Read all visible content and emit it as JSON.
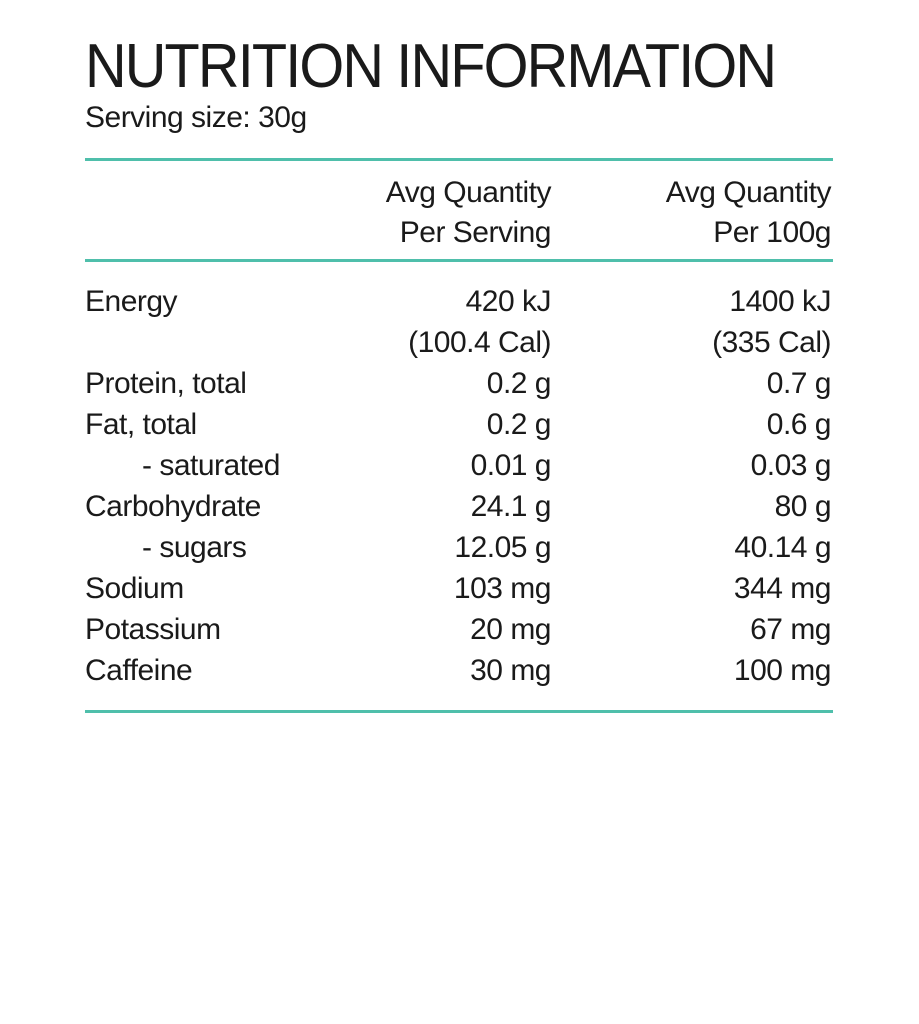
{
  "title": "NUTRITION INFORMATION",
  "serving_size": "Serving size: 30g",
  "accent_color": "#4fbfab",
  "columns": {
    "per_serving": [
      "Avg Quantity",
      "Per Serving"
    ],
    "per_100g": [
      "Avg Quantity",
      "Per 100g"
    ]
  },
  "rows": [
    {
      "label": "Energy",
      "per_serving": "420 kJ",
      "per_100g": "1400 kJ",
      "indent": false
    },
    {
      "label": "",
      "per_serving": "(100.4 Cal)",
      "per_100g": "(335 Cal)",
      "indent": false
    },
    {
      "label": "Protein, total",
      "per_serving": "0.2 g",
      "per_100g": "0.7 g",
      "indent": false
    },
    {
      "label": "Fat, total",
      "per_serving": "0.2 g",
      "per_100g": "0.6 g",
      "indent": false
    },
    {
      "label": "- saturated",
      "per_serving": "0.01 g",
      "per_100g": "0.03 g",
      "indent": true
    },
    {
      "label": "Carbohydrate",
      "per_serving": "24.1 g",
      "per_100g": "80 g",
      "indent": false
    },
    {
      "label": "- sugars",
      "per_serving": "12.05 g",
      "per_100g": "40.14 g",
      "indent": true
    },
    {
      "label": "Sodium",
      "per_serving": "103 mg",
      "per_100g": "344 mg",
      "indent": false
    },
    {
      "label": "Potassium",
      "per_serving": "20 mg",
      "per_100g": "67 mg",
      "indent": false
    },
    {
      "label": "Caffeine",
      "per_serving": "30 mg",
      "per_100g": "100 mg",
      "indent": false
    }
  ]
}
